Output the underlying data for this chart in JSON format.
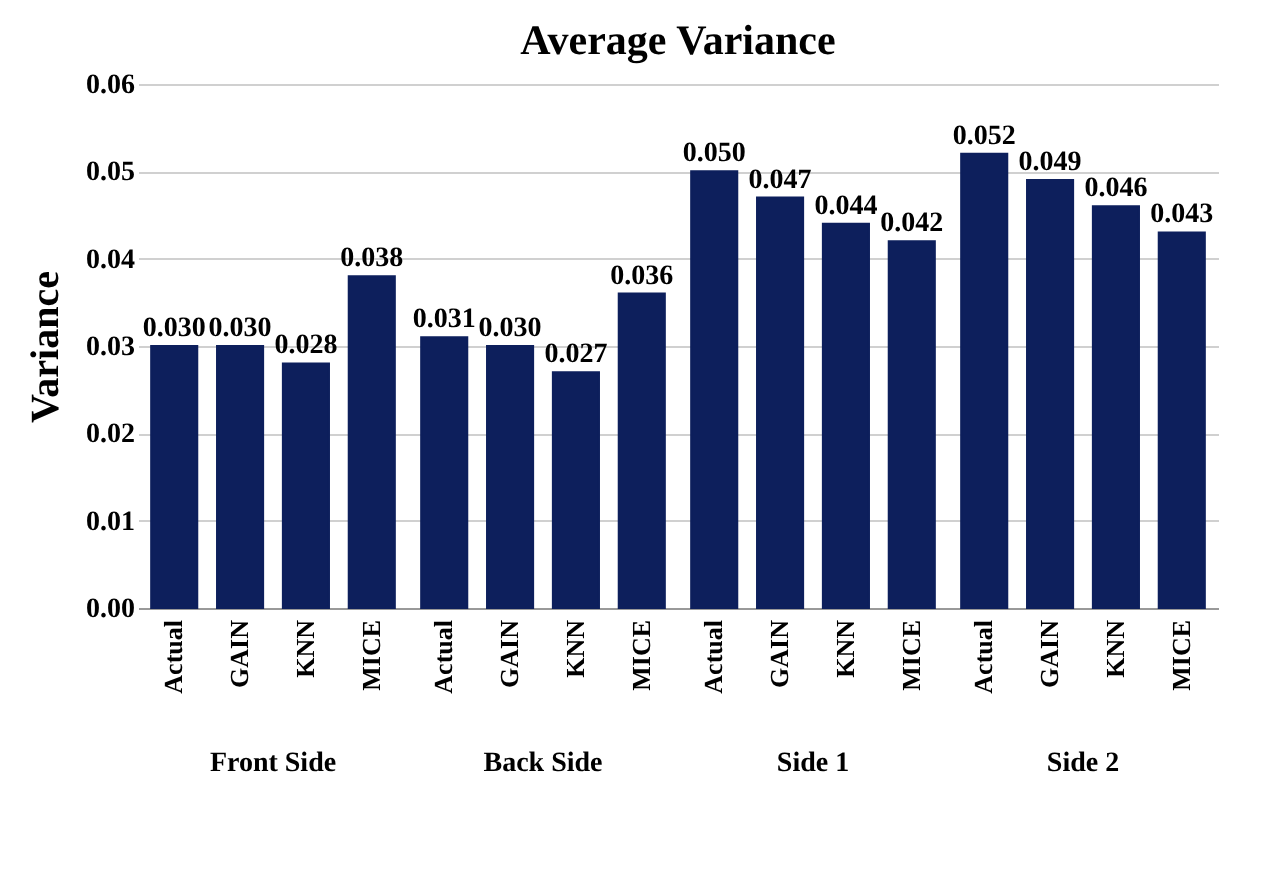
{
  "chart_data": {
    "type": "bar",
    "title": "Average Variance",
    "ylabel": "Variance",
    "categories": [
      "Front Side",
      "Back Side",
      "Side 1",
      "Side 2"
    ],
    "series": [
      {
        "name": "Actual",
        "color": "#0d1f5c",
        "values": [
          0.03,
          0.031,
          0.05,
          0.052
        ],
        "value_labels": [
          "0.030",
          "0.031",
          "0.050",
          "0.052"
        ]
      },
      {
        "name": "GAIN",
        "color": "#0d1f5c",
        "values": [
          0.03,
          0.03,
          0.047,
          0.049
        ],
        "value_labels": [
          "0.030",
          "0.030",
          "0.047",
          "0.049"
        ]
      },
      {
        "name": "KNN",
        "color": "#0d1f5c",
        "values": [
          0.028,
          0.027,
          0.044,
          0.046
        ],
        "value_labels": [
          "0.028",
          "0.027",
          "0.044",
          "0.046"
        ]
      },
      {
        "name": "MICE",
        "color": "#0d1f5c",
        "values": [
          0.038,
          0.036,
          0.042,
          0.043
        ],
        "value_labels": [
          "0.038",
          "0.036",
          "0.042",
          "0.043"
        ]
      }
    ],
    "ylim": [
      0,
      0.06
    ],
    "yticks": [
      {
        "value": 0,
        "label": "0.00"
      },
      {
        "value": 0.01,
        "label": "0.01"
      },
      {
        "value": 0.02,
        "label": "0.02"
      },
      {
        "value": 0.03,
        "label": "0.03"
      },
      {
        "value": 0.04,
        "label": "0.04"
      },
      {
        "value": 0.05,
        "label": "0.05"
      },
      {
        "value": 0.06,
        "label": "0.06"
      }
    ],
    "grid": "y",
    "legend": false
  }
}
